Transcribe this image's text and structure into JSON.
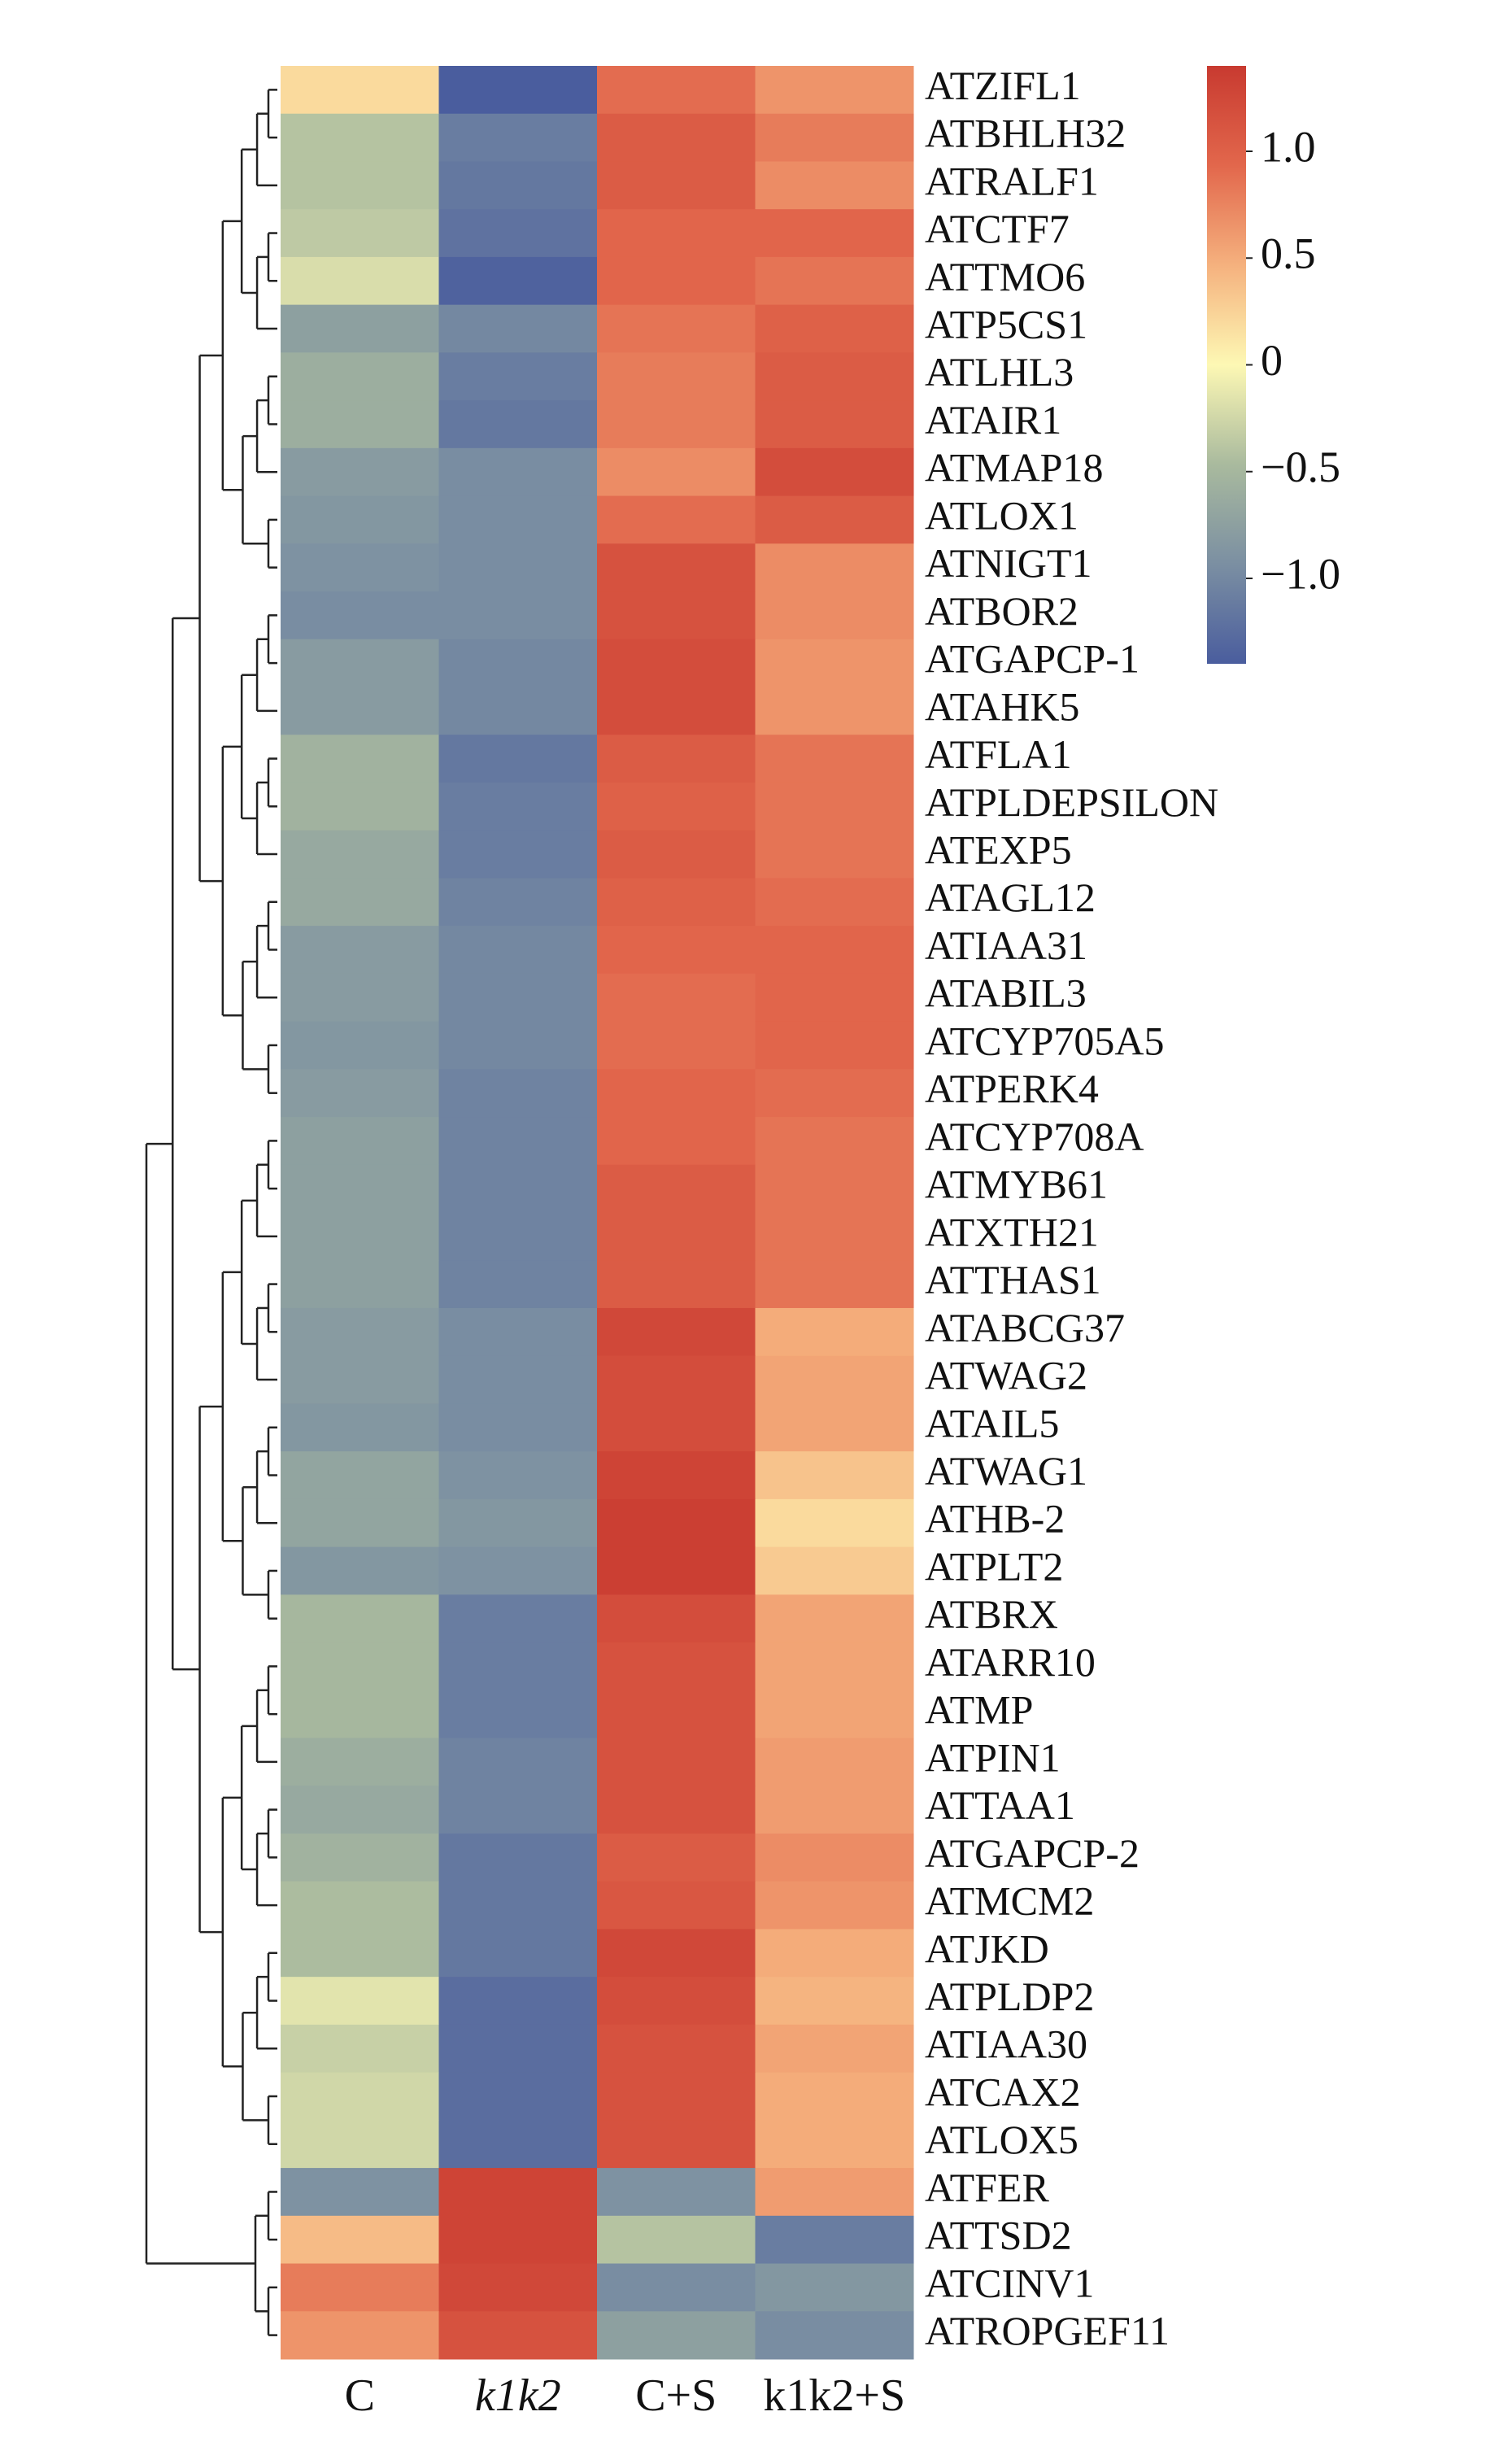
{
  "chart_data": {
    "type": "heatmap",
    "rows": [
      "ATZIFL1",
      "ATBHLH32",
      "ATRALF1",
      "ATCTF7",
      "ATTMO6",
      "ATP5CS1",
      "ATLHL3",
      "ATAIR1",
      "ATMAP18",
      "ATLOX1",
      "ATNIGT1",
      "ATBOR2",
      "ATGAPCP-1",
      "ATAHK5",
      "ATFLA1",
      "ATPLDEPSILON",
      "ATEXP5",
      "ATAGL12",
      "ATIAA31",
      "ATABIL3",
      "ATCYP705A5",
      "ATPERK4",
      "ATCYP708A",
      "ATMYB61",
      "ATXTH21",
      "ATTHAS1",
      "ATABCG37",
      "ATWAG2",
      "ATAIL5",
      "ATWAG1",
      "ATHB-2",
      "ATPLT2",
      "ATBRX",
      "ATARR10",
      "ATMP",
      "ATPIN1",
      "ATTAA1",
      "ATGAPCP-2",
      "ATMCM2",
      "ATJKD",
      "ATPLDP2",
      "ATIAA30",
      "ATCAX2",
      "ATLOX5",
      "ATFER",
      "ATTSD2",
      "ATCINV1",
      "ATROPGEF11"
    ],
    "columns": [
      "C",
      "k1k2",
      "C+S",
      "k1k2+S"
    ],
    "values": [
      [
        0.2,
        -1.4,
        0.9,
        0.65
      ],
      [
        -0.4,
        -1.1,
        1.05,
        0.8
      ],
      [
        -0.4,
        -1.15,
        1.05,
        0.7
      ],
      [
        -0.35,
        -1.2,
        0.95,
        0.95
      ],
      [
        -0.2,
        -1.35,
        0.95,
        0.85
      ],
      [
        -0.75,
        -1.0,
        0.85,
        1.0
      ],
      [
        -0.6,
        -1.1,
        0.8,
        1.05
      ],
      [
        -0.6,
        -1.15,
        0.8,
        1.05
      ],
      [
        -0.8,
        -0.95,
        0.7,
        1.2
      ],
      [
        -0.85,
        -0.95,
        0.9,
        1.05
      ],
      [
        -0.9,
        -0.95,
        1.15,
        0.7
      ],
      [
        -0.95,
        -0.95,
        1.15,
        0.7
      ],
      [
        -0.8,
        -1.0,
        1.2,
        0.65
      ],
      [
        -0.8,
        -1.0,
        1.2,
        0.65
      ],
      [
        -0.55,
        -1.15,
        1.05,
        0.85
      ],
      [
        -0.55,
        -1.1,
        1.0,
        0.85
      ],
      [
        -0.65,
        -1.1,
        1.05,
        0.85
      ],
      [
        -0.65,
        -1.05,
        1.0,
        0.9
      ],
      [
        -0.8,
        -1.0,
        0.95,
        0.95
      ],
      [
        -0.8,
        -1.0,
        0.9,
        0.95
      ],
      [
        -0.85,
        -1.0,
        0.9,
        0.95
      ],
      [
        -0.8,
        -1.05,
        0.95,
        0.9
      ],
      [
        -0.75,
        -1.05,
        0.95,
        0.85
      ],
      [
        -0.75,
        -1.05,
        1.05,
        0.85
      ],
      [
        -0.75,
        -1.05,
        1.05,
        0.85
      ],
      [
        -0.75,
        -1.05,
        1.05,
        0.85
      ],
      [
        -0.8,
        -0.95,
        1.25,
        0.5
      ],
      [
        -0.8,
        -0.95,
        1.2,
        0.55
      ],
      [
        -0.85,
        -0.95,
        1.2,
        0.55
      ],
      [
        -0.7,
        -0.9,
        1.3,
        0.35
      ],
      [
        -0.7,
        -0.85,
        1.35,
        0.2
      ],
      [
        -0.85,
        -0.9,
        1.35,
        0.3
      ],
      [
        -0.5,
        -1.1,
        1.2,
        0.55
      ],
      [
        -0.5,
        -1.1,
        1.15,
        0.55
      ],
      [
        -0.5,
        -1.1,
        1.15,
        0.55
      ],
      [
        -0.6,
        -1.05,
        1.15,
        0.6
      ],
      [
        -0.65,
        -1.05,
        1.15,
        0.6
      ],
      [
        -0.55,
        -1.15,
        1.05,
        0.7
      ],
      [
        -0.45,
        -1.15,
        1.1,
        0.65
      ],
      [
        -0.45,
        -1.15,
        1.25,
        0.5
      ],
      [
        -0.15,
        -1.25,
        1.2,
        0.45
      ],
      [
        -0.3,
        -1.25,
        1.15,
        0.55
      ],
      [
        -0.25,
        -1.25,
        1.15,
        0.5
      ],
      [
        -0.25,
        -1.25,
        1.15,
        0.5
      ],
      [
        -0.9,
        1.3,
        -0.9,
        0.6
      ],
      [
        0.4,
        1.3,
        -0.4,
        -1.1
      ],
      [
        0.8,
        1.25,
        -0.95,
        -0.85
      ],
      [
        0.65,
        1.15,
        -0.75,
        -0.95
      ]
    ],
    "colors": [
      "#4a5d9e",
      "#7b8fa2",
      "#a9ba9e",
      "#fdf8b4",
      "#f5b17e",
      "#e2674c",
      "#c83a30"
    ],
    "clim": [
      -1.4,
      1.4
    ],
    "cticks": [
      {
        "value": 1.0,
        "label": "1.0"
      },
      {
        "value": 0.5,
        "label": "0.5"
      },
      0,
      {
        "value": -0.5,
        "label": "−0.5"
      },
      {
        "value": -1.0,
        "label": "−1.0"
      }
    ]
  }
}
